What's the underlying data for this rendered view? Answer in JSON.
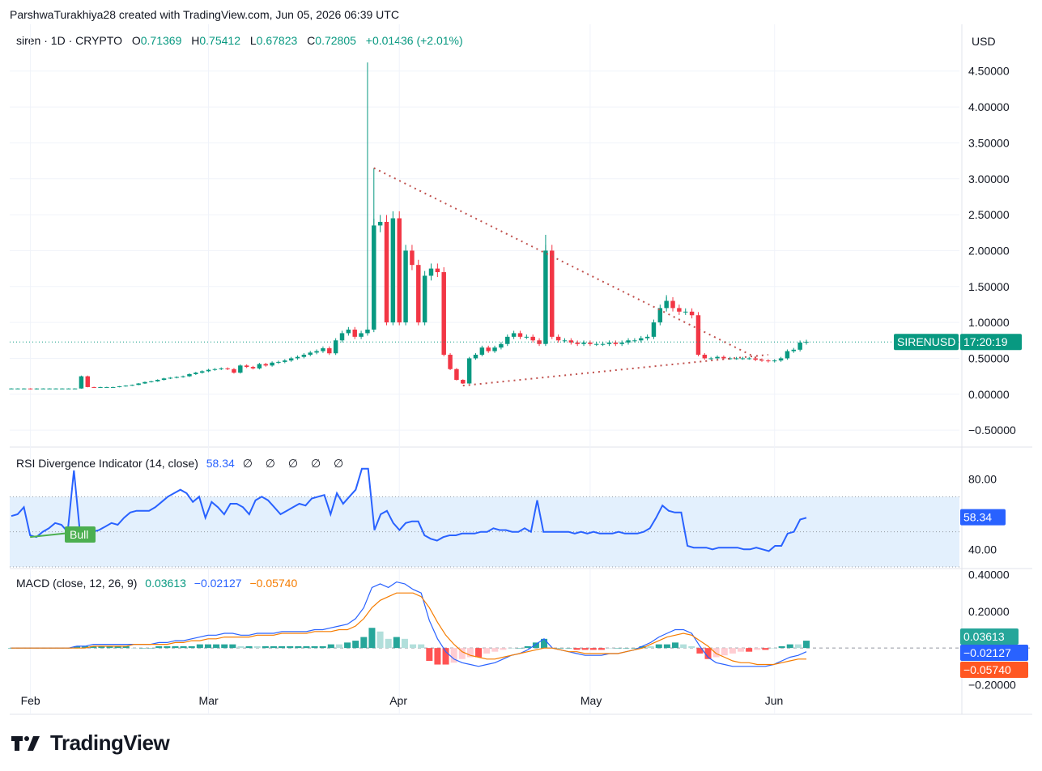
{
  "header": {
    "author_line": "ParshwaTurakhiya28 created with TradingView.com, Jun 05, 2026 06:39 UTC"
  },
  "legend": {
    "symbol": "siren · 1D · CRYPTO",
    "o_label": "O",
    "o_value": "0.71369",
    "h_label": "H",
    "h_value": "0.75412",
    "l_label": "L",
    "l_value": "0.67823",
    "c_label": "C",
    "c_value": "0.72805",
    "change": "+0.01436 (+2.01%)"
  },
  "currency": "USD",
  "price_tag": {
    "symbol": "SIRENUSD",
    "countdown": "17:20:19"
  },
  "rsi": {
    "title": "RSI Divergence Indicator (14, close)",
    "value": "58.34",
    "placeholders": "∅ ∅ ∅ ∅ ∅",
    "bull_label": "Bull"
  },
  "macd": {
    "title": "MACD (close, 12, 26, 9)",
    "hist": "0.03613",
    "macd": "−0.02127",
    "signal": "−0.05740"
  },
  "footer": {
    "brand": "TradingView"
  },
  "colors": {
    "up": "#089981",
    "down": "#f23645",
    "rsi": "#2962ff",
    "signal": "#f57c00",
    "trend": "#c0504d"
  },
  "chart_data": [
    {
      "type": "line",
      "title": "siren · 1D · CRYPTO",
      "ylim": [
        -0.6,
        4.7
      ],
      "yticks": [
        "4.50000",
        "4.00000",
        "3.50000",
        "3.00000",
        "2.50000",
        "2.00000",
        "1.50000",
        "1.00000",
        "0.50000",
        "0.00000",
        "−0.50000"
      ],
      "ytick_values": [
        4.5,
        4.0,
        3.5,
        3.0,
        2.5,
        2.0,
        1.5,
        1.0,
        0.5,
        0.0,
        -0.5
      ],
      "xticks": [
        "Feb",
        "Mar",
        "Apr",
        "May",
        "Jun"
      ],
      "last_price": 0.72805,
      "close_series": [
        0.08,
        0.08,
        0.08,
        0.07,
        0.08,
        0.08,
        0.08,
        0.08,
        0.08,
        0.08,
        0.08,
        0.25,
        0.1,
        0.09,
        0.1,
        0.1,
        0.1,
        0.11,
        0.12,
        0.13,
        0.15,
        0.17,
        0.18,
        0.2,
        0.22,
        0.23,
        0.24,
        0.25,
        0.28,
        0.3,
        0.32,
        0.34,
        0.35,
        0.36,
        0.35,
        0.3,
        0.4,
        0.38,
        0.36,
        0.42,
        0.4,
        0.44,
        0.45,
        0.47,
        0.5,
        0.52,
        0.55,
        0.58,
        0.6,
        0.64,
        0.57,
        0.75,
        0.85,
        0.9,
        0.8,
        0.85,
        0.9,
        2.35,
        2.4,
        1.0,
        2.45,
        1.0,
        2.0,
        1.8,
        1.0,
        1.65,
        1.75,
        1.7,
        0.55,
        0.35,
        0.2,
        0.15,
        0.5,
        0.55,
        0.65,
        0.6,
        0.65,
        0.7,
        0.8,
        0.85,
        0.8,
        0.8,
        0.75,
        0.7,
        2.0,
        0.8,
        0.75,
        0.75,
        0.72,
        0.7,
        0.72,
        0.7,
        0.7,
        0.7,
        0.72,
        0.7,
        0.72,
        0.75,
        0.75,
        0.78,
        0.8,
        1.0,
        1.2,
        1.3,
        1.2,
        1.15,
        1.15,
        1.1,
        0.55,
        0.5,
        0.5,
        0.52,
        0.5,
        0.5,
        0.5,
        0.5,
        0.5,
        0.48,
        0.47,
        0.46,
        0.47,
        0.5,
        0.6,
        0.62,
        0.72,
        0.73
      ],
      "trendlines": [
        {
          "from": [
            0.0,
            3.15
          ],
          "to": [
            1.0,
            0.47
          ],
          "style": "dotted"
        },
        {
          "from": [
            0.0,
            0.12
          ],
          "to": [
            1.0,
            0.55
          ],
          "style": "dotted"
        }
      ]
    },
    {
      "type": "line",
      "title": "RSI Divergence Indicator (14, close)",
      "ylim": [
        30,
        90
      ],
      "yticks": [
        "80.00",
        "40.00"
      ],
      "ytick_values": [
        80,
        40
      ],
      "band": [
        30,
        70
      ],
      "midline": 50,
      "last_value": 58.34,
      "values": [
        59,
        60,
        64,
        48,
        47,
        50,
        52,
        55,
        54,
        50,
        85,
        48,
        50,
        50,
        51,
        53,
        55,
        54,
        58,
        61,
        62,
        62,
        62,
        64,
        67,
        70,
        72,
        74,
        72,
        67,
        70,
        58,
        67,
        64,
        60,
        66,
        66,
        64,
        60,
        68,
        70,
        68,
        64,
        60,
        62,
        64,
        66,
        65,
        69,
        70,
        71,
        60,
        72,
        66,
        70,
        74,
        86,
        86,
        51,
        60,
        62,
        55,
        51,
        55,
        56,
        56,
        48,
        46,
        45,
        47,
        48,
        48,
        49,
        49,
        49,
        50,
        50,
        52,
        51,
        51,
        50,
        50,
        52,
        50,
        68,
        50,
        50,
        50,
        50,
        50,
        49,
        50,
        49,
        50,
        49,
        49,
        49,
        50,
        49,
        49,
        49,
        50,
        52,
        58,
        65,
        62,
        61,
        61,
        42,
        41,
        41,
        41,
        40,
        41,
        41,
        41,
        41,
        40,
        40,
        41,
        40,
        39,
        42,
        42,
        49,
        50,
        57,
        58
      ],
      "divergence_label": "Bull"
    },
    {
      "type": "line",
      "title": "MACD (close, 12, 26, 9)",
      "ylim": [
        -0.22,
        0.42
      ],
      "yticks": [
        "0.40000",
        "0.20000",
        "−0.20000"
      ],
      "ytick_values": [
        0.4,
        0.2,
        -0.2
      ],
      "series": [
        {
          "name": "MACD",
          "values": [
            0,
            0,
            0,
            0,
            0,
            0,
            0,
            0,
            0.01,
            0.01,
            0.02,
            0.02,
            0.02,
            0.02,
            0.02,
            0.02,
            0.02,
            0.02,
            0.03,
            0.03,
            0.04,
            0.04,
            0.05,
            0.06,
            0.07,
            0.07,
            0.08,
            0.08,
            0.07,
            0.07,
            0.08,
            0.08,
            0.08,
            0.09,
            0.09,
            0.09,
            0.09,
            0.1,
            0.1,
            0.11,
            0.12,
            0.13,
            0.16,
            0.22,
            0.33,
            0.35,
            0.33,
            0.36,
            0.35,
            0.32,
            0.3,
            0.15,
            0.05,
            -0.02,
            -0.06,
            -0.08,
            -0.09,
            -0.1,
            -0.09,
            -0.08,
            -0.06,
            -0.04,
            -0.03,
            -0.01,
            0.02,
            0.05,
            0.0,
            -0.01,
            -0.02,
            -0.03,
            -0.04,
            -0.04,
            -0.04,
            -0.03,
            -0.03,
            -0.02,
            -0.01,
            0.01,
            0.03,
            0.06,
            0.08,
            0.1,
            0.1,
            0.08,
            0.01,
            -0.05,
            -0.08,
            -0.09,
            -0.1,
            -0.1,
            -0.1,
            -0.1,
            -0.1,
            -0.09,
            -0.07,
            -0.05,
            -0.04,
            -0.02
          ]
        },
        {
          "name": "Signal",
          "values": [
            0,
            0,
            0,
            0,
            0,
            0,
            0,
            0,
            0,
            0,
            0.01,
            0.01,
            0.01,
            0.01,
            0.01,
            0.02,
            0.02,
            0.02,
            0.02,
            0.02,
            0.03,
            0.03,
            0.04,
            0.04,
            0.05,
            0.05,
            0.06,
            0.06,
            0.06,
            0.06,
            0.07,
            0.07,
            0.07,
            0.08,
            0.08,
            0.08,
            0.08,
            0.09,
            0.09,
            0.09,
            0.1,
            0.1,
            0.12,
            0.16,
            0.22,
            0.26,
            0.28,
            0.3,
            0.3,
            0.3,
            0.28,
            0.22,
            0.14,
            0.07,
            0.02,
            -0.02,
            -0.04,
            -0.05,
            -0.06,
            -0.06,
            -0.05,
            -0.04,
            -0.03,
            -0.02,
            -0.01,
            0.0,
            0.0,
            -0.01,
            -0.02,
            -0.02,
            -0.03,
            -0.03,
            -0.03,
            -0.03,
            -0.03,
            -0.02,
            -0.01,
            0.0,
            0.02,
            0.04,
            0.06,
            0.07,
            0.08,
            0.07,
            0.04,
            0.01,
            -0.03,
            -0.05,
            -0.07,
            -0.08,
            -0.08,
            -0.09,
            -0.09,
            -0.09,
            -0.08,
            -0.07,
            -0.06,
            -0.06
          ]
        }
      ],
      "last_values": {
        "histogram": 0.03613,
        "macd": -0.02127,
        "signal": -0.0574
      }
    }
  ]
}
